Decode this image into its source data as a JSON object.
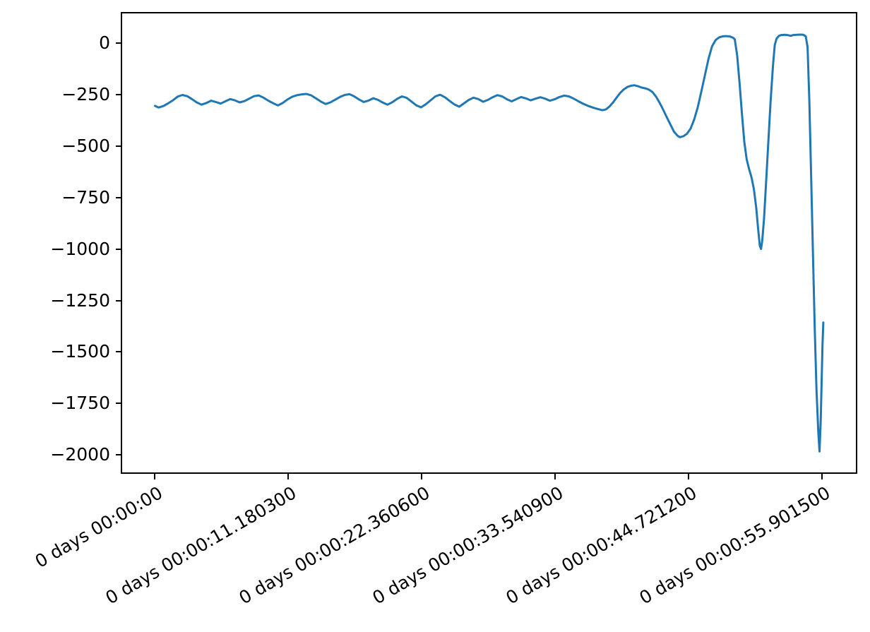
{
  "figure": {
    "background_color": "#ffffff",
    "axes_background_color": "#ffffff",
    "spine_color": "#000000",
    "tick_color": "#000000",
    "tick_label_color": "#000000"
  },
  "chart_data": {
    "type": "line",
    "title": "",
    "xlabel": "",
    "ylabel": "",
    "grid": false,
    "legend": null,
    "x_unit": "timedelta (0 days HH:MM:SS)",
    "xlim": [
      -2.75,
      58.75
    ],
    "ylim": [
      -2085,
      144
    ],
    "x_tick_rotation_deg": 30,
    "xticks": [
      {
        "value": 0.0,
        "label": "0 days 00:00:00"
      },
      {
        "value": 11.1803,
        "label": "0 days 00:00:11.180300"
      },
      {
        "value": 22.3606,
        "label": "0 days 00:00:22.360600"
      },
      {
        "value": 33.5409,
        "label": "0 days 00:00:33.540900"
      },
      {
        "value": 44.7212,
        "label": "0 days 00:00:44.721200"
      },
      {
        "value": 55.9015,
        "label": "0 days 00:00:55.901500"
      }
    ],
    "yticks": [
      {
        "value": 0,
        "label": "0"
      },
      {
        "value": -250,
        "label": "−250"
      },
      {
        "value": -500,
        "label": "−500"
      },
      {
        "value": -750,
        "label": "−750"
      },
      {
        "value": -1000,
        "label": "−1000"
      },
      {
        "value": -1250,
        "label": "−1250"
      },
      {
        "value": -1500,
        "label": "−1500"
      },
      {
        "value": -1750,
        "label": "−1750"
      },
      {
        "value": -2000,
        "label": "−2000"
      }
    ],
    "series": [
      {
        "name": "series-0",
        "color": "#1f77b4",
        "line_width": 3,
        "points": [
          [
            0.0,
            -305
          ],
          [
            0.3,
            -313
          ],
          [
            0.7,
            -306
          ],
          [
            1.1,
            -293
          ],
          [
            1.5,
            -278
          ],
          [
            1.9,
            -260
          ],
          [
            2.3,
            -252
          ],
          [
            2.7,
            -258
          ],
          [
            3.1,
            -272
          ],
          [
            3.5,
            -288
          ],
          [
            3.9,
            -299
          ],
          [
            4.3,
            -291
          ],
          [
            4.7,
            -280
          ],
          [
            5.1,
            -286
          ],
          [
            5.5,
            -294
          ],
          [
            5.9,
            -283
          ],
          [
            6.3,
            -272
          ],
          [
            6.7,
            -278
          ],
          [
            7.1,
            -288
          ],
          [
            7.5,
            -282
          ],
          [
            7.9,
            -270
          ],
          [
            8.3,
            -258
          ],
          [
            8.7,
            -254
          ],
          [
            9.1,
            -265
          ],
          [
            9.5,
            -280
          ],
          [
            9.9,
            -292
          ],
          [
            10.3,
            -303
          ],
          [
            10.7,
            -291
          ],
          [
            11.1,
            -274
          ],
          [
            11.5,
            -261
          ],
          [
            11.9,
            -253
          ],
          [
            12.3,
            -249
          ],
          [
            12.7,
            -247
          ],
          [
            13.1,
            -254
          ],
          [
            13.5,
            -269
          ],
          [
            13.9,
            -284
          ],
          [
            14.3,
            -296
          ],
          [
            14.7,
            -288
          ],
          [
            15.1,
            -275
          ],
          [
            15.5,
            -262
          ],
          [
            15.9,
            -252
          ],
          [
            16.3,
            -248
          ],
          [
            16.7,
            -259
          ],
          [
            17.1,
            -274
          ],
          [
            17.5,
            -286
          ],
          [
            17.9,
            -279
          ],
          [
            18.3,
            -268
          ],
          [
            18.7,
            -276
          ],
          [
            19.1,
            -289
          ],
          [
            19.5,
            -299
          ],
          [
            19.9,
            -287
          ],
          [
            20.3,
            -271
          ],
          [
            20.7,
            -259
          ],
          [
            21.1,
            -266
          ],
          [
            21.5,
            -284
          ],
          [
            21.9,
            -302
          ],
          [
            22.3,
            -312
          ],
          [
            22.7,
            -297
          ],
          [
            23.1,
            -278
          ],
          [
            23.5,
            -259
          ],
          [
            23.9,
            -251
          ],
          [
            24.3,
            -263
          ],
          [
            24.7,
            -281
          ],
          [
            25.1,
            -298
          ],
          [
            25.5,
            -309
          ],
          [
            25.9,
            -293
          ],
          [
            26.3,
            -276
          ],
          [
            26.7,
            -265
          ],
          [
            27.1,
            -272
          ],
          [
            27.5,
            -285
          ],
          [
            27.9,
            -276
          ],
          [
            28.3,
            -263
          ],
          [
            28.7,
            -253
          ],
          [
            29.1,
            -259
          ],
          [
            29.5,
            -273
          ],
          [
            29.9,
            -283
          ],
          [
            30.3,
            -272
          ],
          [
            30.7,
            -262
          ],
          [
            31.1,
            -269
          ],
          [
            31.5,
            -278
          ],
          [
            31.9,
            -270
          ],
          [
            32.3,
            -263
          ],
          [
            32.7,
            -270
          ],
          [
            33.1,
            -280
          ],
          [
            33.5,
            -273
          ],
          [
            33.9,
            -262
          ],
          [
            34.3,
            -255
          ],
          [
            34.7,
            -259
          ],
          [
            35.1,
            -270
          ],
          [
            35.5,
            -283
          ],
          [
            35.9,
            -295
          ],
          [
            36.3,
            -305
          ],
          [
            36.7,
            -313
          ],
          [
            37.1,
            -320
          ],
          [
            37.5,
            -326
          ],
          [
            37.8,
            -322
          ],
          [
            38.1,
            -308
          ],
          [
            38.4,
            -288
          ],
          [
            38.7,
            -264
          ],
          [
            39.0,
            -242
          ],
          [
            39.3,
            -225
          ],
          [
            39.6,
            -213
          ],
          [
            39.9,
            -207
          ],
          [
            40.2,
            -205
          ],
          [
            40.5,
            -210
          ],
          [
            40.8,
            -216
          ],
          [
            41.1,
            -220
          ],
          [
            41.4,
            -226
          ],
          [
            41.7,
            -238
          ],
          [
            42.0,
            -260
          ],
          [
            42.3,
            -290
          ],
          [
            42.6,
            -324
          ],
          [
            42.9,
            -360
          ],
          [
            43.2,
            -395
          ],
          [
            43.5,
            -430
          ],
          [
            43.8,
            -450
          ],
          [
            44.0,
            -457
          ],
          [
            44.3,
            -452
          ],
          [
            44.6,
            -440
          ],
          [
            44.9,
            -415
          ],
          [
            45.2,
            -370
          ],
          [
            45.5,
            -310
          ],
          [
            45.8,
            -235
          ],
          [
            46.1,
            -155
          ],
          [
            46.4,
            -75
          ],
          [
            46.7,
            -15
          ],
          [
            47.0,
            15
          ],
          [
            47.3,
            28
          ],
          [
            47.6,
            33
          ],
          [
            47.9,
            34
          ],
          [
            48.2,
            32
          ],
          [
            48.45,
            26
          ],
          [
            48.6,
            18
          ],
          [
            48.8,
            -60
          ],
          [
            49.0,
            -195
          ],
          [
            49.2,
            -345
          ],
          [
            49.4,
            -480
          ],
          [
            49.6,
            -565
          ],
          [
            49.8,
            -612
          ],
          [
            50.0,
            -652
          ],
          [
            50.2,
            -710
          ],
          [
            50.4,
            -800
          ],
          [
            50.55,
            -900
          ],
          [
            50.7,
            -985
          ],
          [
            50.8,
            -1000
          ],
          [
            50.9,
            -960
          ],
          [
            51.05,
            -855
          ],
          [
            51.2,
            -705
          ],
          [
            51.4,
            -495
          ],
          [
            51.6,
            -285
          ],
          [
            51.8,
            -110
          ],
          [
            51.95,
            -10
          ],
          [
            52.1,
            22
          ],
          [
            52.3,
            35
          ],
          [
            52.5,
            39
          ],
          [
            52.8,
            40
          ],
          [
            53.1,
            38
          ],
          [
            53.3,
            35
          ],
          [
            53.5,
            39
          ],
          [
            53.8,
            40
          ],
          [
            54.1,
            41
          ],
          [
            54.35,
            40
          ],
          [
            54.55,
            33
          ],
          [
            54.7,
            -20
          ],
          [
            54.85,
            -280
          ],
          [
            55.0,
            -640
          ],
          [
            55.15,
            -1020
          ],
          [
            55.3,
            -1380
          ],
          [
            55.45,
            -1680
          ],
          [
            55.6,
            -1890
          ],
          [
            55.7,
            -1983
          ],
          [
            55.8,
            -1835
          ],
          [
            55.88,
            -1645
          ],
          [
            55.95,
            -1470
          ],
          [
            56.02,
            -1357
          ]
        ]
      }
    ]
  }
}
